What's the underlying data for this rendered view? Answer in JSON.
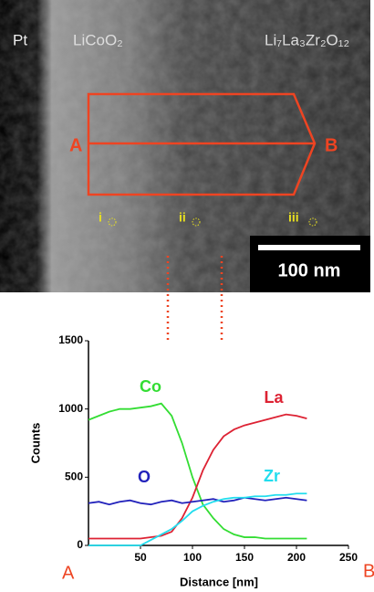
{
  "micrograph": {
    "labels": {
      "pt": "Pt",
      "cathode": "LiCoO₂",
      "electrolyte": "Li₇La₃Zr₂O₁₂"
    },
    "scan_start": "A",
    "scan_end": "B",
    "points": [
      "i",
      "ii",
      "iii"
    ],
    "scale_bar": "100 nm"
  },
  "chart_data": {
    "type": "line",
    "y_label": "Counts",
    "x_label": "Distance [nm]",
    "x": [
      0,
      10,
      20,
      30,
      40,
      50,
      60,
      70,
      80,
      90,
      100,
      110,
      120,
      130,
      140,
      150,
      160,
      170,
      180,
      190,
      200,
      210
    ],
    "series": [
      {
        "name": "Co",
        "color": "#33dd33",
        "values": [
          920,
          950,
          980,
          1000,
          1000,
          1010,
          1020,
          1040,
          950,
          750,
          500,
          300,
          200,
          120,
          80,
          60,
          60,
          50,
          50,
          50,
          50,
          50
        ]
      },
      {
        "name": "La",
        "color": "#dd2233",
        "values": [
          50,
          50,
          50,
          50,
          50,
          50,
          60,
          70,
          100,
          200,
          350,
          550,
          700,
          800,
          850,
          880,
          900,
          920,
          940,
          960,
          950,
          930
        ]
      },
      {
        "name": "O",
        "color": "#2222bb",
        "values": [
          310,
          320,
          300,
          320,
          330,
          310,
          300,
          320,
          330,
          310,
          320,
          330,
          340,
          320,
          330,
          350,
          340,
          330,
          340,
          350,
          340,
          330
        ]
      },
      {
        "name": "Zr",
        "color": "#22ddee",
        "values": [
          0,
          0,
          0,
          0,
          0,
          0,
          40,
          80,
          120,
          180,
          250,
          290,
          320,
          340,
          350,
          350,
          360,
          360,
          370,
          370,
          380,
          380
        ]
      }
    ],
    "xlim": [
      0,
      250
    ],
    "ylim": [
      0,
      1500
    ],
    "xticks": [
      50,
      100,
      150,
      200,
      250
    ],
    "yticks": [
      0,
      500,
      1000,
      1500
    ],
    "start_label": "A",
    "end_label": "B"
  }
}
